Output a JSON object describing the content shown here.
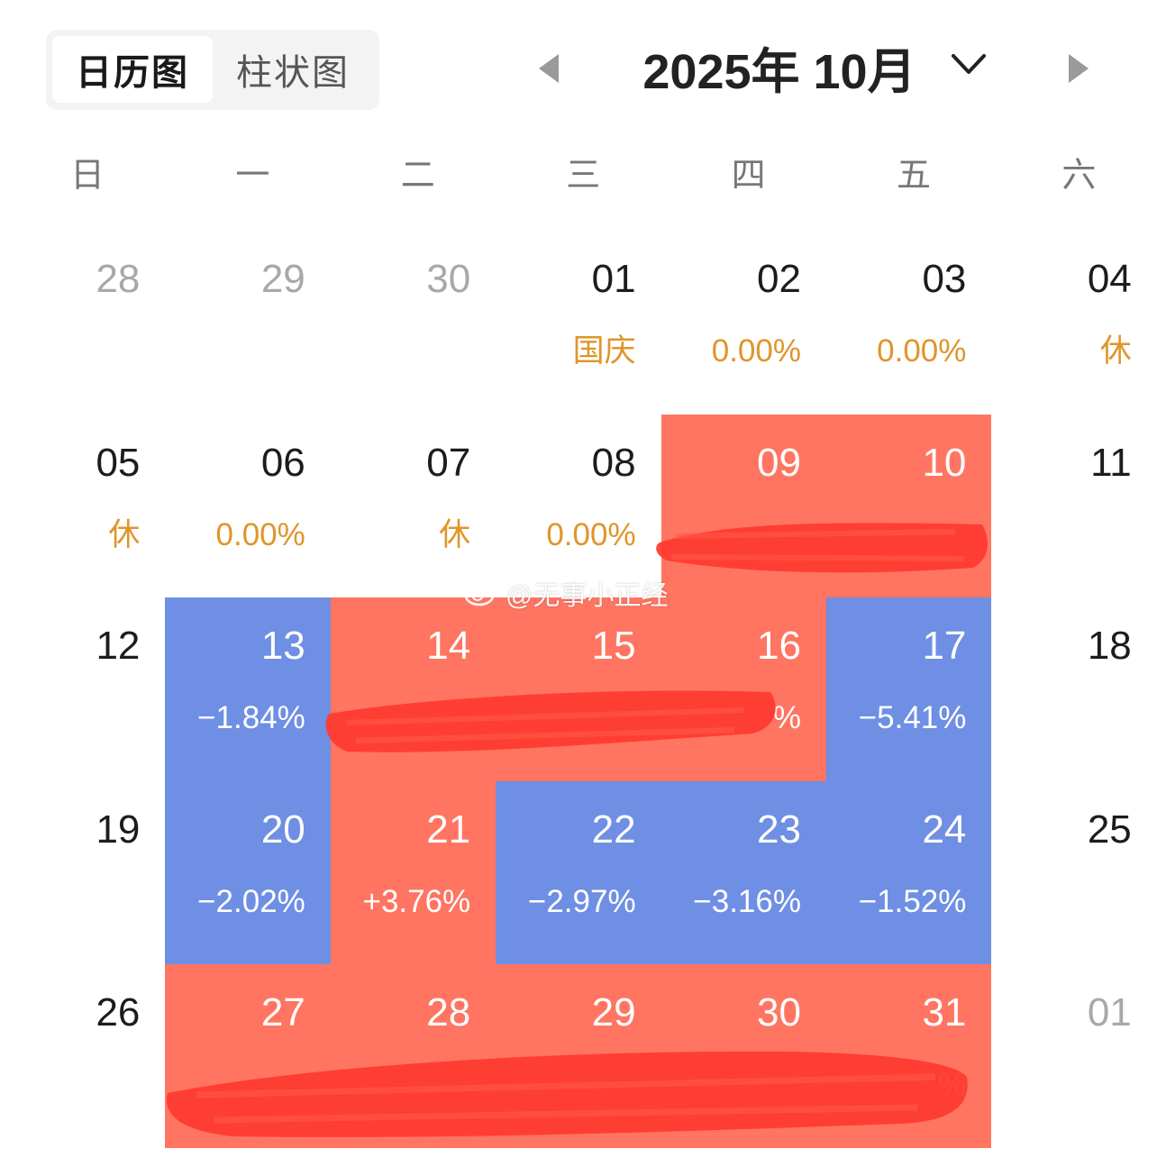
{
  "toggle": {
    "calendar_label": "日历图",
    "bar_label": "柱状图"
  },
  "header": {
    "month_title": "2025年 10月"
  },
  "weekdays": [
    "日",
    "一",
    "二",
    "三",
    "四",
    "五",
    "六"
  ],
  "watermark": "@无事小正经",
  "colors": {
    "up": "#ff7561",
    "down": "#6e8fe4",
    "holiday_text": "#e0952a",
    "scribble": "#ff3b30"
  },
  "weeks": [
    [
      {
        "day": "28",
        "value": "",
        "state": "muted"
      },
      {
        "day": "29",
        "value": "",
        "state": "muted"
      },
      {
        "day": "30",
        "value": "",
        "state": "muted"
      },
      {
        "day": "01",
        "value": "国庆",
        "state": "plain"
      },
      {
        "day": "02",
        "value": "0.00%",
        "state": "plain"
      },
      {
        "day": "03",
        "value": "0.00%",
        "state": "plain"
      },
      {
        "day": "04",
        "value": "休",
        "state": "plain"
      }
    ],
    [
      {
        "day": "05",
        "value": "休",
        "state": "plain"
      },
      {
        "day": "06",
        "value": "0.00%",
        "state": "plain"
      },
      {
        "day": "07",
        "value": "休",
        "state": "plain"
      },
      {
        "day": "08",
        "value": "0.00%",
        "state": "plain"
      },
      {
        "day": "09",
        "value": "",
        "state": "up"
      },
      {
        "day": "10",
        "value": "",
        "state": "up"
      },
      {
        "day": "11",
        "value": "",
        "state": "plain"
      }
    ],
    [
      {
        "day": "12",
        "value": "",
        "state": "plain"
      },
      {
        "day": "13",
        "value": "−1.84%",
        "state": "down"
      },
      {
        "day": "14",
        "value": "",
        "state": "up"
      },
      {
        "day": "15",
        "value": "",
        "state": "up"
      },
      {
        "day": "16",
        "value": "%",
        "state": "up"
      },
      {
        "day": "17",
        "value": "−5.41%",
        "state": "down"
      },
      {
        "day": "18",
        "value": "",
        "state": "plain"
      }
    ],
    [
      {
        "day": "19",
        "value": "",
        "state": "plain"
      },
      {
        "day": "20",
        "value": "−2.02%",
        "state": "down"
      },
      {
        "day": "21",
        "value": "+3.76%",
        "state": "up"
      },
      {
        "day": "22",
        "value": "−2.97%",
        "state": "down"
      },
      {
        "day": "23",
        "value": "−3.16%",
        "state": "down"
      },
      {
        "day": "24",
        "value": "−1.52%",
        "state": "down"
      },
      {
        "day": "25",
        "value": "",
        "state": "plain"
      }
    ],
    [
      {
        "day": "26",
        "value": "",
        "state": "plain"
      },
      {
        "day": "27",
        "value": "",
        "state": "up"
      },
      {
        "day": "28",
        "value": "",
        "state": "up"
      },
      {
        "day": "29",
        "value": "",
        "state": "up"
      },
      {
        "day": "30",
        "value": "",
        "state": "up"
      },
      {
        "day": "31",
        "value": "%",
        "state": "up"
      },
      {
        "day": "01",
        "value": "",
        "state": "muted"
      }
    ]
  ]
}
